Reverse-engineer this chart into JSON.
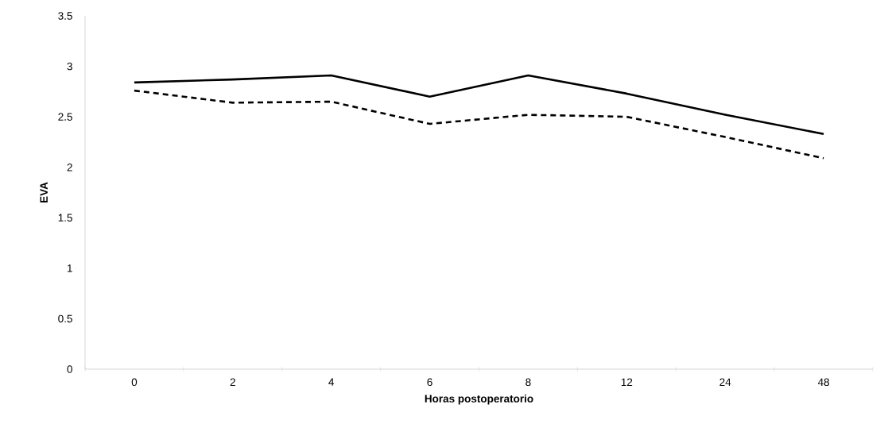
{
  "chart_data": {
    "type": "line",
    "xlabel": "Horas postoperatorio",
    "ylabel": "EVA",
    "categories": [
      "0",
      "2",
      "4",
      "6",
      "8",
      "12",
      "24",
      "48"
    ],
    "series": [
      {
        "color": "#000000",
        "line_style": "solid",
        "values": [
          2.84,
          2.87,
          2.91,
          2.7,
          2.91,
          2.73,
          2.52,
          2.33
        ]
      },
      {
        "color": "#000000",
        "line_style": "dashed",
        "values": [
          2.76,
          2.64,
          2.65,
          2.43,
          2.52,
          2.5,
          2.3,
          2.09
        ]
      }
    ],
    "ylim": [
      0,
      3.5
    ],
    "yticks": [
      0,
      0.5,
      1,
      1.5,
      2,
      2.5,
      3,
      3.5
    ],
    "grid": false,
    "legend": false,
    "marker": "none"
  }
}
